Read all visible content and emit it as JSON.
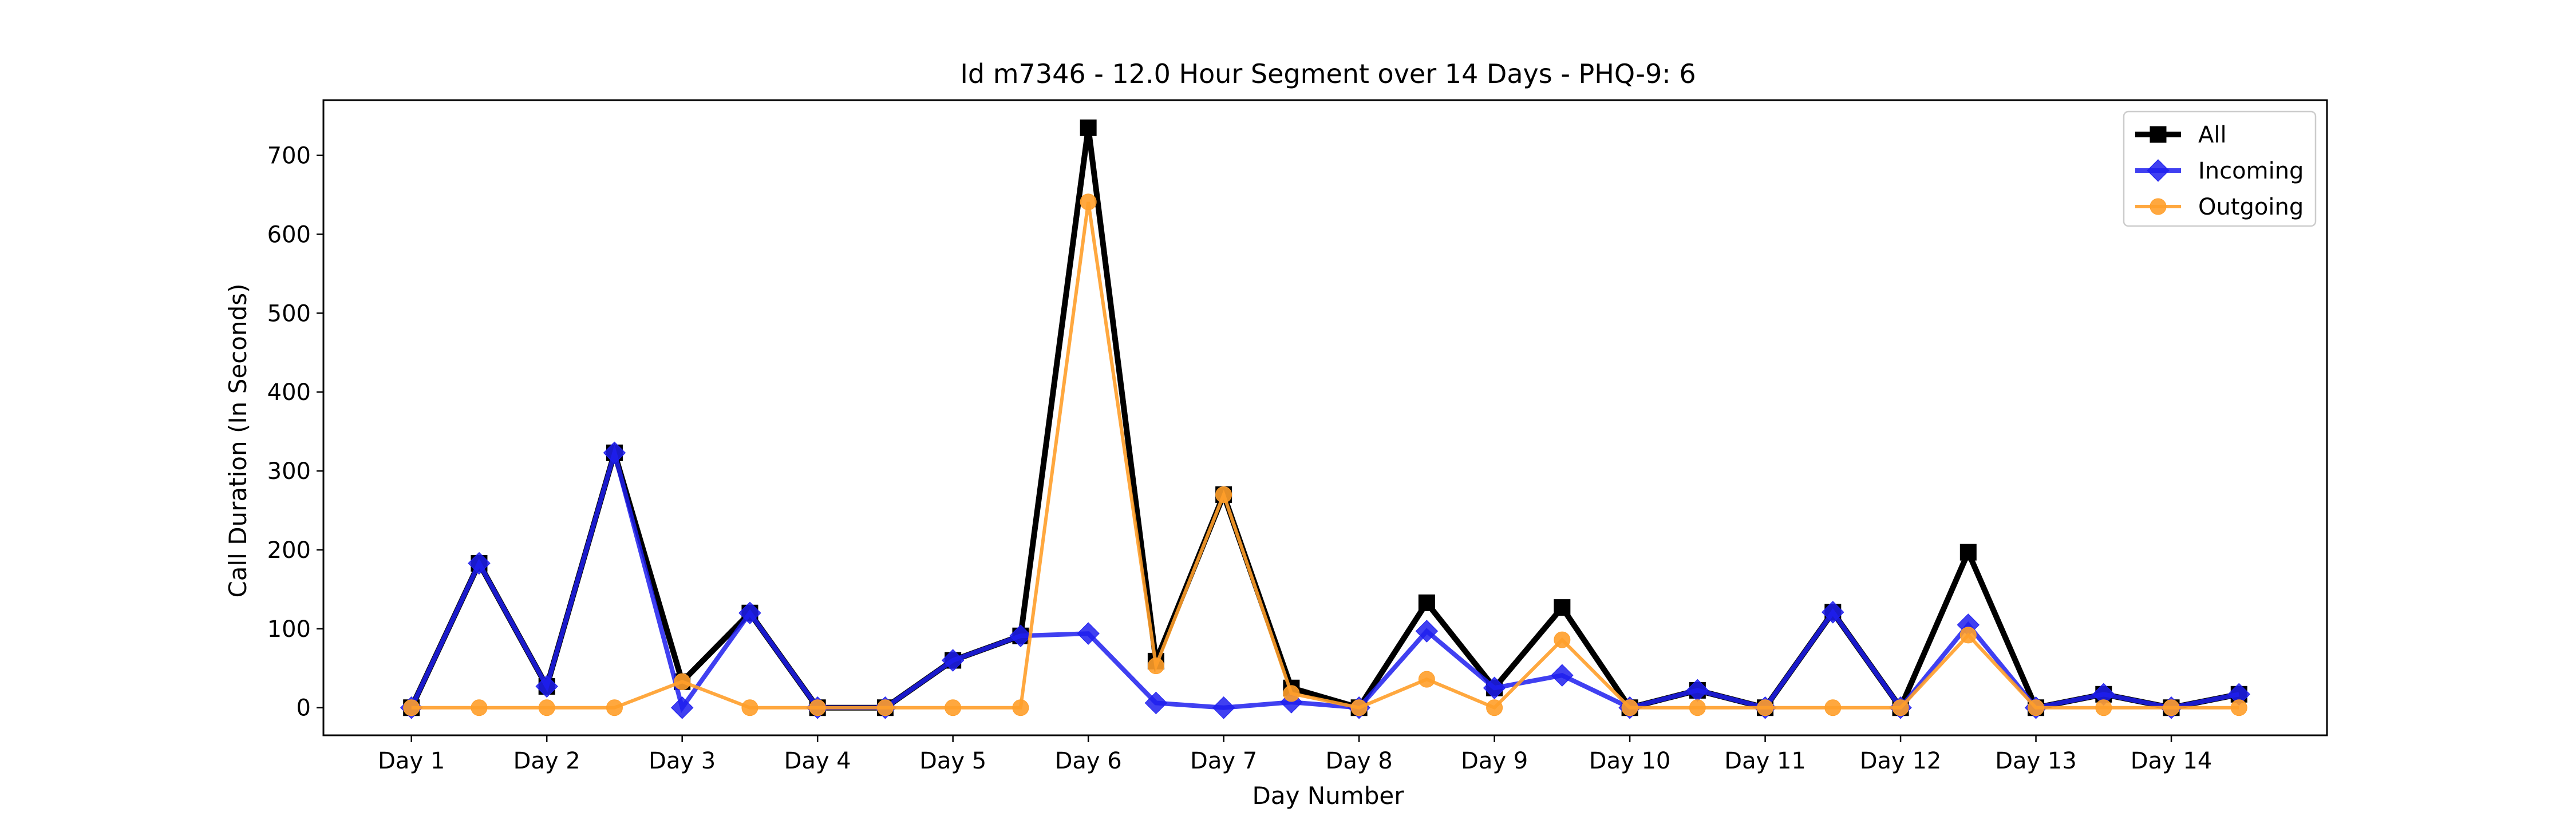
{
  "chart_data": {
    "type": "line",
    "title": "Id m7346 - 12.0 Hour Segment over 14 Days - PHQ-9: 6",
    "xlabel": "Day Number",
    "ylabel": "Call Duration (In Seconds)",
    "categories": [
      "Day 1",
      "Day 2",
      "Day 3",
      "Day 4",
      "Day 5",
      "Day 6",
      "Day 7",
      "Day 8",
      "Day 9",
      "Day 10",
      "Day 11",
      "Day 12",
      "Day 13",
      "Day 14"
    ],
    "x": [
      1,
      1.5,
      2,
      2.5,
      3,
      3.5,
      4,
      4.5,
      5,
      5.5,
      6,
      6.5,
      7,
      7.5,
      8,
      8.5,
      9,
      9.5,
      10,
      10.5,
      11,
      11.5,
      12,
      12.5,
      13,
      13.5,
      14,
      14.5
    ],
    "xlim": [
      0.35,
      15.15
    ],
    "ylim": [
      -35,
      770
    ],
    "yticks": [
      0,
      100,
      200,
      300,
      400,
      500,
      600,
      700
    ],
    "grid": false,
    "legend_position": "top-right",
    "series": [
      {
        "name": "All",
        "color": "#000000",
        "marker": "square",
        "values": [
          0,
          183,
          27,
          323,
          33,
          120,
          0,
          0,
          60,
          91,
          735,
          59,
          270,
          25,
          0,
          133,
          25,
          127,
          0,
          22,
          0,
          121,
          0,
          197,
          0,
          17,
          0,
          17
        ]
      },
      {
        "name": "Incoming",
        "color": "#1f1fef",
        "marker": "diamond",
        "values": [
          0,
          183,
          27,
          323,
          0,
          120,
          0,
          0,
          60,
          91,
          94,
          6,
          0,
          7,
          0,
          97,
          25,
          41,
          0,
          22,
          0,
          121,
          0,
          105,
          0,
          17,
          0,
          17
        ]
      },
      {
        "name": "Outgoing",
        "color": "#ff9e2a",
        "marker": "circle",
        "values": [
          0,
          0,
          0,
          0,
          33,
          0,
          0,
          0,
          0,
          0,
          641,
          53,
          270,
          18,
          0,
          36,
          0,
          86,
          0,
          0,
          0,
          0,
          0,
          92,
          0,
          0,
          0,
          0
        ]
      }
    ]
  }
}
